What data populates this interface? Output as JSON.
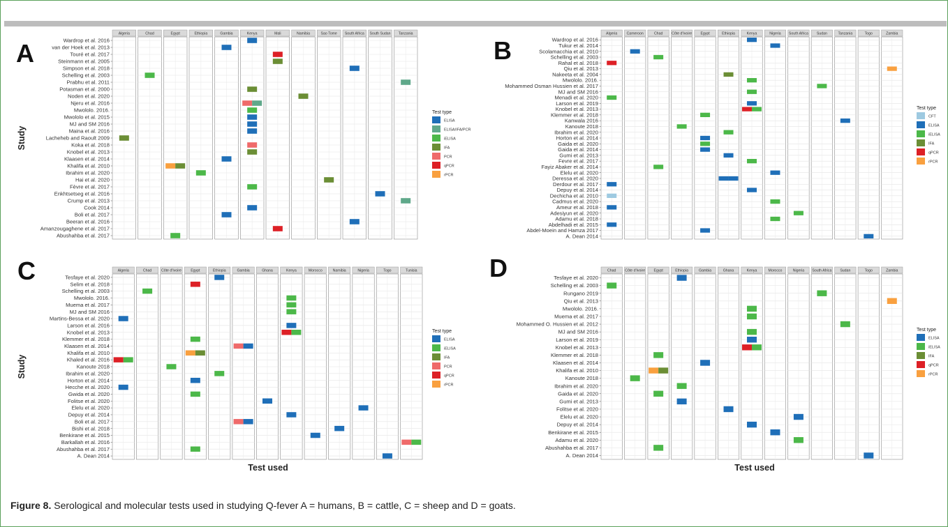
{
  "figure_caption": {
    "label": "Figure 8.",
    "text": "Serological and molecular tests used in studying Q-fever A = humans, B = cattle, C = sheep and D = goats."
  },
  "colors": {
    "CFT": "#9ecae1",
    "ELISA": "#1f6fb8",
    "ELISA/IFA/PCR": "#5fa88a",
    "iELISA": "#4cb849",
    "IFA": "#6b8e35",
    "PCR": "#ef6a6a",
    "qPCR": "#dd2026",
    "rPCR": "#f9a03f"
  },
  "chart_data": [
    {
      "type": "heatmap",
      "panel": "A",
      "xlabel": "",
      "ylabel": "Study",
      "legend_title": "Test type",
      "legend": [
        "ELISA",
        "ELISA/IFA/PCR",
        "iELISA",
        "IFA",
        "PCR",
        "qPCR",
        "rPCR"
      ],
      "legend_labels": [
        "ELISA",
        "ELISA/IFA/PCR",
        "iELISA",
        "IFA",
        "PCR",
        "qPCR",
        "rPCR"
      ],
      "countries": [
        "Algeria",
        "Chad",
        "Egypt",
        "Ethiopia",
        "Gambia",
        "Kenya",
        "Mali",
        "Namibia",
        "Sao Tome",
        "South Africa",
        "South Sudan",
        "Tanzania"
      ],
      "studies": [
        "Wardrop et al. 2016",
        "van der Hoek et al. 2013",
        "Touré et al. 2017",
        "Steinmann et al. 2005",
        "Simpson et al. 2018",
        "Schelling et al. 2003",
        "Prabhu et al. 2011",
        "Potasman et al. 2000",
        "Noden et al. 2020",
        "Njeru et al. 2016",
        "Mwololo. 2016.",
        "Mwololo et al. 2015",
        "MJ and SM 2016",
        "Maina et al. 2016",
        "Lacheheb and Raoult 2009",
        "Koka et al. 2018",
        "Knobel et al. 2013",
        "Klaasen et al. 2014",
        "Khalifa et al. 2010",
        "Ibrahim et al. 2020",
        "Hai et al. 2020",
        "Fèvre et al. 2017",
        "Enkhtsetseg et al. 2016",
        "Crump et al. 2013",
        "Cook 2014",
        "Boli et al. 2017",
        "Beeran et al. 2016",
        "Amanzougaghene et al. 2017",
        "Abushahba et al. 2017"
      ],
      "cells": [
        [
          "Wardrop et al. 2016",
          "Kenya",
          "ELISA"
        ],
        [
          "van der Hoek et al. 2013",
          "Gambia",
          "ELISA"
        ],
        [
          "Touré et al. 2017",
          "Mali",
          "qPCR"
        ],
        [
          "Steinmann et al. 2005",
          "Mali",
          "IFA"
        ],
        [
          "Simpson et al. 2018",
          "South Africa",
          "ELISA"
        ],
        [
          "Schelling et al. 2003",
          "Chad",
          "iELISA"
        ],
        [
          "Prabhu et al. 2011",
          "Tanzania",
          "ELISA/IFA/PCR"
        ],
        [
          "Potasman et al. 2000",
          "Kenya",
          "IFA"
        ],
        [
          "Noden et al. 2020",
          "Namibia",
          "IFA"
        ],
        [
          "Njeru et al. 2016",
          "Kenya",
          "PCR"
        ],
        [
          "Njeru et al. 2016",
          "Kenya",
          "ELISA/IFA/PCR"
        ],
        [
          "Mwololo. 2016.",
          "Kenya",
          "iELISA"
        ],
        [
          "Mwololo et al. 2015",
          "Kenya",
          "ELISA"
        ],
        [
          "MJ and SM 2016",
          "Kenya",
          "ELISA"
        ],
        [
          "Maina et al. 2016",
          "Kenya",
          "ELISA"
        ],
        [
          "Lacheheb and Raoult 2009",
          "Algeria",
          "IFA"
        ],
        [
          "Koka et al. 2018",
          "Kenya",
          "PCR"
        ],
        [
          "Knobel et al. 2013",
          "Kenya",
          "IFA"
        ],
        [
          "Klaasen et al. 2014",
          "Gambia",
          "ELISA"
        ],
        [
          "Khalifa et al. 2010",
          "Egypt",
          "rPCR"
        ],
        [
          "Khalifa et al. 2010",
          "Egypt",
          "IFA"
        ],
        [
          "Ibrahim et al. 2020",
          "Ethiopia",
          "iELISA"
        ],
        [
          "Hai et al. 2020",
          "Sao Tome",
          "IFA"
        ],
        [
          "Fèvre et al. 2017",
          "Kenya",
          "iELISA"
        ],
        [
          "Enkhtsetseg et al. 2016",
          "South Sudan",
          "ELISA"
        ],
        [
          "Crump et al. 2013",
          "Tanzania",
          "ELISA/IFA/PCR"
        ],
        [
          "Cook 2014",
          "Kenya",
          "ELISA"
        ],
        [
          "Boli et al. 2017",
          "Gambia",
          "ELISA"
        ],
        [
          "Beeran et al. 2016",
          "South Africa",
          "ELISA"
        ],
        [
          "Amanzougaghene et al. 2017",
          "Mali",
          "qPCR"
        ],
        [
          "Abushahba et al. 2017",
          "Egypt",
          "iELISA"
        ]
      ]
    },
    {
      "type": "heatmap",
      "panel": "B",
      "xlabel": "",
      "ylabel": "",
      "legend_title": "Test type",
      "legend": [
        "CFT",
        "ELISA",
        "iELISA",
        "IFA",
        "qPCR",
        "rPCR"
      ],
      "legend_labels": [
        "CFT",
        "ELISA",
        "iELISA",
        "IFA",
        "qPCR",
        "rPCR"
      ],
      "countries": [
        "Algeria",
        "Cameroon",
        "Chad",
        "Côte d'Ivoire",
        "Egypt",
        "Ethiopia",
        "Kenya",
        "Nigeria",
        "South Africa",
        "Sudan",
        "Tanzania",
        "Togo",
        "Zambia"
      ],
      "studies": [
        "Wardrop et al. 2016",
        "Tukur et al. 2014",
        "Scolamacchia et al. 2010",
        "Schelling et al. 2003",
        "Rahal et al. 2018",
        "Qiu et al. 2013",
        "Nakeeta et al. 2004",
        "Mwololo. 2016.",
        "Mohammed Osman Hussien et al. 2017",
        "MJ and SM 2016",
        "Menadi et al. 2020",
        "Larson et al. 2019",
        "Knobel et al. 2013",
        "Klemmer et al. 2018",
        "Kanwala 2016",
        "Kanoute 2018",
        "Ibrahim et al. 2020",
        "Horton et al. 2014",
        "Gaida et al. 2020",
        "Gaida et al. 2014",
        "Gumi et al. 2013",
        "Fevre et al. 2017",
        "Fayiz Abaker et al. 2014",
        "Elelu et al. 2020",
        "Deressa et al. 2020",
        "Derdour et al. 2017",
        "Depuy et al. 2014",
        "Dechicha et al. 2010",
        "Cadmus et al. 2020",
        "Ameur et al. 2018",
        "Adesiyun et al. 2020",
        "Adamu et al. 2018",
        "Abdelhadi et al. 2015",
        "Abdel-Moein and Hamza 2017",
        "A. Dean 2014"
      ],
      "cells": [
        [
          "Wardrop et al. 2016",
          "Kenya",
          "ELISA"
        ],
        [
          "Tukur et al. 2014",
          "Nigeria",
          "ELISA"
        ],
        [
          "Scolamacchia et al. 2010",
          "Cameroon",
          "ELISA"
        ],
        [
          "Schelling et al. 2003",
          "Chad",
          "iELISA"
        ],
        [
          "Rahal et al. 2018",
          "Algeria",
          "qPCR"
        ],
        [
          "Qiu et al. 2013",
          "Zambia",
          "rPCR"
        ],
        [
          "Nakeeta et al. 2004",
          "Ethiopia",
          "IFA"
        ],
        [
          "Mwololo. 2016.",
          "Kenya",
          "iELISA"
        ],
        [
          "Mohammed Osman Hussien et al. 2017",
          "Sudan",
          "iELISA"
        ],
        [
          "MJ and SM 2016",
          "Kenya",
          "iELISA"
        ],
        [
          "Menadi et al. 2020",
          "Algeria",
          "iELISA"
        ],
        [
          "Larson et al. 2019",
          "Kenya",
          "ELISA"
        ],
        [
          "Knobel et al. 2013",
          "Kenya",
          "qPCR"
        ],
        [
          "Knobel et al. 2013",
          "Kenya",
          "iELISA"
        ],
        [
          "Klemmer et al. 2018",
          "Egypt",
          "iELISA"
        ],
        [
          "Kanwala 2016",
          "Tanzania",
          "ELISA"
        ],
        [
          "Kanoute 2018",
          "Côte d'Ivoire",
          "iELISA"
        ],
        [
          "Ibrahim et al. 2020",
          "Ethiopia",
          "iELISA"
        ],
        [
          "Horton et al. 2014",
          "Egypt",
          "ELISA"
        ],
        [
          "Gaida et al. 2020",
          "Egypt",
          "iELISA"
        ],
        [
          "Gaida et al. 2014",
          "Egypt",
          "ELISA"
        ],
        [
          "Gumi et al. 2013",
          "Ethiopia",
          "ELISA"
        ],
        [
          "Fevre et al. 2017",
          "Kenya",
          "iELISA"
        ],
        [
          "Fayiz Abaker et al. 2014",
          "Chad",
          "iELISA"
        ],
        [
          "Elelu et al. 2020",
          "Nigeria",
          "ELISA"
        ],
        [
          "Deressa et al. 2020",
          "Ethiopia",
          "ELISA"
        ],
        [
          "Deressa et al. 2020",
          "Ethiopia",
          "ELISA"
        ],
        [
          "Derdour et al. 2017",
          "Algeria",
          "ELISA"
        ],
        [
          "Depuy et al. 2014",
          "Kenya",
          "ELISA"
        ],
        [
          "Dechicha et al. 2010",
          "Algeria",
          "CFT"
        ],
        [
          "Cadmus et al. 2020",
          "Nigeria",
          "iELISA"
        ],
        [
          "Ameur et al. 2018",
          "Algeria",
          "ELISA"
        ],
        [
          "Adesiyun et al. 2020",
          "South Africa",
          "iELISA"
        ],
        [
          "Adamu et al. 2018",
          "Nigeria",
          "iELISA"
        ],
        [
          "Abdelhadi et al. 2015",
          "Algeria",
          "ELISA"
        ],
        [
          "Abdel-Moein and Hamza 2017",
          "Egypt",
          "ELISA"
        ],
        [
          "A. Dean 2014",
          "Togo",
          "ELISA"
        ]
      ]
    },
    {
      "type": "heatmap",
      "panel": "C",
      "xlabel": "Test used",
      "ylabel": "Study",
      "legend_title": "Test type",
      "legend": [
        "ELISA",
        "iELISA",
        "IFA",
        "PCR",
        "qPCR",
        "rPCR"
      ],
      "legend_labels": [
        "ELISA",
        "iELISA",
        "IFA",
        "PCR",
        "qPCR",
        "rPCR"
      ],
      "countries": [
        "Algeria",
        "Chad",
        "Côte d'Ivoire",
        "Egypt",
        "Ethiopia",
        "Gambia",
        "Ghana",
        "Kenya",
        "Morocco",
        "Namibia",
        "Nigeria",
        "Togo",
        "Tunisia"
      ],
      "studies": [
        "Tesfaye et al. 2020",
        "Selim et al. 2018",
        "Schelling et al. 2003",
        "Mwololo. 2016.",
        "Muema et al. 2017",
        "MJ and SM 2016",
        "Martins-Bessa et al. 2020",
        "Larson et al. 2016",
        "Knobel et al. 2013",
        "Klemmer et al. 2018",
        "Klaasen et al. 2014",
        "Khalifa et al. 2010",
        "Khaled et al. 2016",
        "Kanoute 2018",
        "Ibrahim et al. 2020",
        "Horton et al. 2014",
        "Hecche et al. 2020",
        "Gwida et al. 2020",
        "Folitse et al. 2020",
        "Elelu et al. 2020",
        "Depuy et al. 2014",
        "Boli et al. 2017",
        "Bishi et al. 2018",
        "Benkirane et al. 2015",
        "Barkallah et al. 2016",
        "Abushahba et al. 2017",
        "A. Dean 2014"
      ],
      "cells": [
        [
          "Tesfaye et al. 2020",
          "Ethiopia",
          "ELISA"
        ],
        [
          "Selim et al. 2018",
          "Egypt",
          "qPCR"
        ],
        [
          "Schelling et al. 2003",
          "Chad",
          "iELISA"
        ],
        [
          "Mwololo. 2016.",
          "Kenya",
          "iELISA"
        ],
        [
          "Muema et al. 2017",
          "Kenya",
          "iELISA"
        ],
        [
          "MJ and SM 2016",
          "Kenya",
          "iELISA"
        ],
        [
          "Martins-Bessa et al. 2020",
          "Algeria",
          "ELISA"
        ],
        [
          "Larson et al. 2016",
          "Kenya",
          "ELISA"
        ],
        [
          "Knobel et al. 2013",
          "Kenya",
          "qPCR"
        ],
        [
          "Knobel et al. 2013",
          "Kenya",
          "iELISA"
        ],
        [
          "Klemmer et al. 2018",
          "Egypt",
          "iELISA"
        ],
        [
          "Klaasen et al. 2014",
          "Gambia",
          "PCR"
        ],
        [
          "Klaasen et al. 2014",
          "Gambia",
          "ELISA"
        ],
        [
          "Khalifa et al. 2010",
          "Egypt",
          "rPCR"
        ],
        [
          "Khalifa et al. 2010",
          "Egypt",
          "IFA"
        ],
        [
          "Khaled et al. 2016",
          "Algeria",
          "qPCR"
        ],
        [
          "Khaled et al. 2016",
          "Algeria",
          "iELISA"
        ],
        [
          "Kanoute 2018",
          "Côte d'Ivoire",
          "iELISA"
        ],
        [
          "Ibrahim et al. 2020",
          "Ethiopia",
          "iELISA"
        ],
        [
          "Horton et al. 2014",
          "Egypt",
          "ELISA"
        ],
        [
          "Hecche et al. 2020",
          "Algeria",
          "ELISA"
        ],
        [
          "Gwida et al. 2020",
          "Egypt",
          "iELISA"
        ],
        [
          "Folitse et al. 2020",
          "Ghana",
          "ELISA"
        ],
        [
          "Elelu et al. 2020",
          "Nigeria",
          "ELISA"
        ],
        [
          "Depuy et al. 2014",
          "Kenya",
          "ELISA"
        ],
        [
          "Boli et al. 2017",
          "Gambia",
          "PCR"
        ],
        [
          "Boli et al. 2017",
          "Gambia",
          "ELISA"
        ],
        [
          "Bishi et al. 2018",
          "Namibia",
          "ELISA"
        ],
        [
          "Benkirane et al. 2015",
          "Morocco",
          "ELISA"
        ],
        [
          "Barkallah et al. 2016",
          "Tunisia",
          "PCR"
        ],
        [
          "Barkallah et al. 2016",
          "Tunisia",
          "iELISA"
        ],
        [
          "Abushahba et al. 2017",
          "Egypt",
          "iELISA"
        ],
        [
          "A. Dean 2014",
          "Togo",
          "ELISA"
        ]
      ]
    },
    {
      "type": "heatmap",
      "panel": "D",
      "xlabel": "Test used",
      "ylabel": "",
      "legend_title": "Test type",
      "legend": [
        "ELISA",
        "iELISA",
        "IFA",
        "qPCR",
        "rPCR"
      ],
      "legend_labels": [
        "ELISA",
        "iELISA",
        "IFA",
        "qPCR",
        "rPCR"
      ],
      "countries": [
        "Chad",
        "Côte d'Ivoire",
        "Egypt",
        "Ethiopia",
        "Gambia",
        "Ghana",
        "Kenya",
        "Morocco",
        "Nigeria",
        "South Africa",
        "Sudan",
        "Togo",
        "Zambia"
      ],
      "studies": [
        "Tesfaye et al. 2020",
        "Schelling et al. 2003",
        "Rungano 2019",
        "Qiu et al. 2013",
        "Mwololo. 2016.",
        "Muema et al. 2017",
        "Mohammed O. Hussien et al. 2012",
        "MJ and SM 2016",
        "Larson et al. 2019",
        "Knobel et al. 2013",
        "Klemmer et al. 2018",
        "Klaasen et al. 2014",
        "Khalifa et al. 2010",
        "Kanoute 2018",
        "Ibrahim et al. 2020",
        "Gaida et al. 2020",
        "Gumi et al. 2013",
        "Folitse et al. 2020",
        "Elelu et al. 2020",
        "Depuy et al. 2014",
        "Benkirane et al. 2015",
        "Adamu et al. 2020",
        "Abushahba et al. 2017",
        "A. Dean 2014"
      ],
      "cells": [
        [
          "Tesfaye et al. 2020",
          "Ethiopia",
          "ELISA"
        ],
        [
          "Schelling et al. 2003",
          "Chad",
          "iELISA"
        ],
        [
          "Rungano 2019",
          "South Africa",
          "iELISA"
        ],
        [
          "Qiu et al. 2013",
          "Zambia",
          "rPCR"
        ],
        [
          "Mwololo. 2016.",
          "Kenya",
          "iELISA"
        ],
        [
          "Muema et al. 2017",
          "Kenya",
          "iELISA"
        ],
        [
          "Mohammed O. Hussien et al. 2012",
          "Sudan",
          "iELISA"
        ],
        [
          "MJ and SM 2016",
          "Kenya",
          "iELISA"
        ],
        [
          "Larson et al. 2019",
          "Kenya",
          "ELISA"
        ],
        [
          "Knobel et al. 2013",
          "Kenya",
          "qPCR"
        ],
        [
          "Knobel et al. 2013",
          "Kenya",
          "iELISA"
        ],
        [
          "Klemmer et al. 2018",
          "Egypt",
          "iELISA"
        ],
        [
          "Klaasen et al. 2014",
          "Gambia",
          "ELISA"
        ],
        [
          "Khalifa et al. 2010",
          "Egypt",
          "rPCR"
        ],
        [
          "Khalifa et al. 2010",
          "Egypt",
          "IFA"
        ],
        [
          "Kanoute 2018",
          "Côte d'Ivoire",
          "iELISA"
        ],
        [
          "Ibrahim et al. 2020",
          "Ethiopia",
          "iELISA"
        ],
        [
          "Gaida et al. 2020",
          "Egypt",
          "iELISA"
        ],
        [
          "Gumi et al. 2013",
          "Ethiopia",
          "ELISA"
        ],
        [
          "Folitse et al. 2020",
          "Ghana",
          "ELISA"
        ],
        [
          "Elelu et al. 2020",
          "Nigeria",
          "ELISA"
        ],
        [
          "Depuy et al. 2014",
          "Kenya",
          "ELISA"
        ],
        [
          "Benkirane et al. 2015",
          "Morocco",
          "ELISA"
        ],
        [
          "Adamu et al. 2020",
          "Nigeria",
          "iELISA"
        ],
        [
          "Abushahba et al. 2017",
          "Egypt",
          "iELISA"
        ],
        [
          "A. Dean 2014",
          "Togo",
          "ELISA"
        ]
      ]
    }
  ]
}
